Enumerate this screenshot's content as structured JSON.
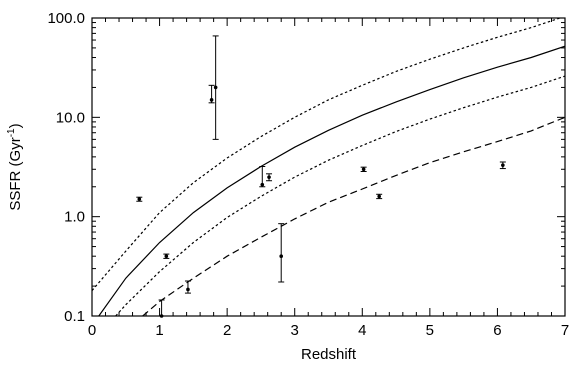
{
  "chart_data": {
    "type": "scatter",
    "xlabel": "Redshift",
    "ylabel": "SSFR (Gyr",
    "ylabel_sup": "-1",
    "ylabel_close": ")",
    "xlim": [
      0,
      7
    ],
    "ylim": [
      0.1,
      100
    ],
    "yscale": "log",
    "grid": false,
    "x_ticks": [
      0,
      1,
      2,
      3,
      4,
      5,
      6,
      7
    ],
    "x_tick_labels": [
      "0",
      "1",
      "2",
      "3",
      "4",
      "5",
      "6",
      "7"
    ],
    "y_ticks": [
      0.1,
      1,
      10,
      100
    ],
    "y_tick_labels": [
      "0.1",
      "1.0",
      "10.0",
      "100.0"
    ],
    "series": [
      {
        "style": "solid",
        "x": [
          0.1,
          0.5,
          1.0,
          1.5,
          2.0,
          2.5,
          3.0,
          3.5,
          4.0,
          4.5,
          5.0,
          5.5,
          6.0,
          6.5,
          7.0
        ],
        "y": [
          0.1,
          0.24,
          0.55,
          1.1,
          1.95,
          3.2,
          5.0,
          7.4,
          10.5,
          14.3,
          19.0,
          25.0,
          32.0,
          40.0,
          52.0
        ]
      },
      {
        "style": "dotted",
        "x": [
          0.0,
          0.5,
          1.0,
          1.5,
          2.0,
          2.5,
          3.0,
          3.5,
          4.0,
          4.5,
          5.0,
          5.5,
          6.0,
          6.5,
          7.0
        ],
        "y": [
          0.18,
          0.45,
          1.1,
          2.2,
          3.9,
          6.4,
          10.0,
          15.0,
          21.0,
          29.0,
          38.5,
          50.0,
          64.0,
          80.0,
          104.0
        ]
      },
      {
        "style": "dotted",
        "x": [
          0.35,
          0.5,
          1.0,
          1.5,
          2.0,
          2.5,
          3.0,
          3.5,
          4.0,
          4.5,
          5.0,
          5.5,
          6.0,
          6.5,
          7.0
        ],
        "y": [
          0.1,
          0.13,
          0.28,
          0.55,
          0.98,
          1.6,
          2.5,
          3.7,
          5.2,
          7.2,
          9.6,
          12.5,
          16.0,
          20.0,
          26.0
        ]
      },
      {
        "style": "dashed",
        "x": [
          0.75,
          1.0,
          1.5,
          2.0,
          2.5,
          3.0,
          3.5,
          4.0,
          4.5,
          5.0,
          5.5,
          6.0,
          6.5,
          7.0
        ],
        "y": [
          0.1,
          0.14,
          0.24,
          0.4,
          0.62,
          0.95,
          1.4,
          1.9,
          2.6,
          3.5,
          4.5,
          5.7,
          7.3,
          10.0
        ]
      }
    ],
    "points": [
      {
        "x": 0.7,
        "y": 1.5,
        "lo": 1.43,
        "hi": 1.57
      },
      {
        "x": 1.03,
        "y": 0.1,
        "lo": 0.1,
        "hi": 0.145
      },
      {
        "x": 1.1,
        "y": 0.4,
        "lo": 0.38,
        "hi": 0.42
      },
      {
        "x": 1.42,
        "y": 0.185,
        "lo": 0.17,
        "hi": 0.225
      },
      {
        "x": 1.77,
        "y": 15.0,
        "lo": 14.0,
        "hi": 21.0
      },
      {
        "x": 1.83,
        "y": 20.0,
        "lo": 6.0,
        "hi": 66.0
      },
      {
        "x": 2.52,
        "y": 2.1,
        "lo": 2.0,
        "hi": 3.2
      },
      {
        "x": 2.62,
        "y": 2.5,
        "lo": 2.3,
        "hi": 2.7
      },
      {
        "x": 2.8,
        "y": 0.4,
        "lo": 0.22,
        "hi": 0.85
      },
      {
        "x": 4.02,
        "y": 3.0,
        "lo": 2.85,
        "hi": 3.15
      },
      {
        "x": 4.25,
        "y": 1.6,
        "lo": 1.52,
        "hi": 1.68
      },
      {
        "x": 6.08,
        "y": 3.3,
        "lo": 3.05,
        "hi": 3.55
      }
    ]
  }
}
